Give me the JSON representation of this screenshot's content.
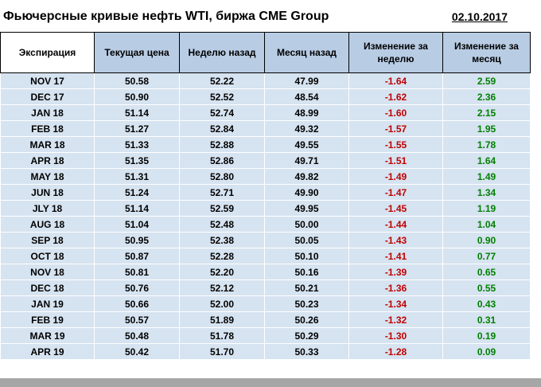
{
  "title": "Фьючерсные кривые нефть WTI, биржа CME Group",
  "date": "02.10.2017",
  "colors": {
    "header_bg": "#b8cce4",
    "row_bg": "#d6e3f0",
    "negative": "#c00000",
    "positive": "#008000"
  },
  "chart_data": {
    "type": "table",
    "title": "Фьючерсные кривые нефть WTI, биржа CME Group",
    "date": "02.10.2017",
    "columns": [
      "Экспирация",
      "Текущая цена",
      "Неделю назад",
      "Месяц назад",
      "Изменение за неделю",
      "Изменение за месяц"
    ],
    "rows": [
      [
        "NOV 17",
        "50.58",
        "52.22",
        "47.99",
        "-1.64",
        "2.59"
      ],
      [
        "DEC 17",
        "50.90",
        "52.52",
        "48.54",
        "-1.62",
        "2.36"
      ],
      [
        "JAN 18",
        "51.14",
        "52.74",
        "48.99",
        "-1.60",
        "2.15"
      ],
      [
        "FEB 18",
        "51.27",
        "52.84",
        "49.32",
        "-1.57",
        "1.95"
      ],
      [
        "MAR 18",
        "51.33",
        "52.88",
        "49.55",
        "-1.55",
        "1.78"
      ],
      [
        "APR 18",
        "51.35",
        "52.86",
        "49.71",
        "-1.51",
        "1.64"
      ],
      [
        "MAY 18",
        "51.31",
        "52.80",
        "49.82",
        "-1.49",
        "1.49"
      ],
      [
        "JUN 18",
        "51.24",
        "52.71",
        "49.90",
        "-1.47",
        "1.34"
      ],
      [
        "JLY 18",
        "51.14",
        "52.59",
        "49.95",
        "-1.45",
        "1.19"
      ],
      [
        "AUG 18",
        "51.04",
        "52.48",
        "50.00",
        "-1.44",
        "1.04"
      ],
      [
        "SEP 18",
        "50.95",
        "52.38",
        "50.05",
        "-1.43",
        "0.90"
      ],
      [
        "OCT 18",
        "50.87",
        "52.28",
        "50.10",
        "-1.41",
        "0.77"
      ],
      [
        "NOV 18",
        "50.81",
        "52.20",
        "50.16",
        "-1.39",
        "0.65"
      ],
      [
        "DEC 18",
        "50.76",
        "52.12",
        "50.21",
        "-1.36",
        "0.55"
      ],
      [
        "JAN 19",
        "50.66",
        "52.00",
        "50.23",
        "-1.34",
        "0.43"
      ],
      [
        "FEB 19",
        "50.57",
        "51.89",
        "50.26",
        "-1.32",
        "0.31"
      ],
      [
        "MAR 19",
        "50.48",
        "51.78",
        "50.29",
        "-1.30",
        "0.19"
      ],
      [
        "APR 19",
        "50.42",
        "51.70",
        "50.33",
        "-1.28",
        "0.09"
      ]
    ]
  }
}
